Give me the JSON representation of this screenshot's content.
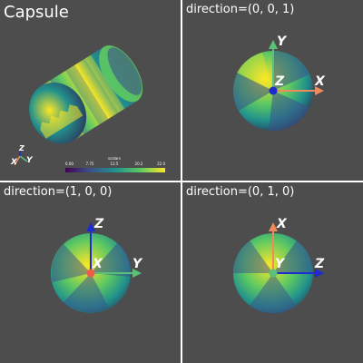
{
  "views": [
    {
      "title": "Capsule",
      "axes_triad": {
        "x_label": "X",
        "y_label": "Y",
        "z_label": "Z"
      },
      "scalar_bar": {
        "title": "scalars",
        "ticks": [
          "0.00",
          "7.75",
          "12.5",
          "20.2",
          "22.0"
        ]
      }
    },
    {
      "title": "direction=(0, 0, 1)",
      "axes": {
        "x": "X",
        "y": "Y",
        "z": "Z"
      }
    },
    {
      "title": "direction=(1, 0, 0)",
      "axes": {
        "x": "X",
        "y": "Y",
        "z": "Z"
      }
    },
    {
      "title": "direction=(0, 1, 0)",
      "axes": {
        "x": "X",
        "y": "Y",
        "z": "Z"
      }
    }
  ],
  "colors": {
    "background": "#4d4d4d",
    "x_axis": "#f08a5d",
    "y_axis": "#5bc07a",
    "z_axis": "#1f2bd1",
    "colormap": [
      "#440154",
      "#3b528b",
      "#21918c",
      "#5ec962",
      "#fde725"
    ]
  }
}
